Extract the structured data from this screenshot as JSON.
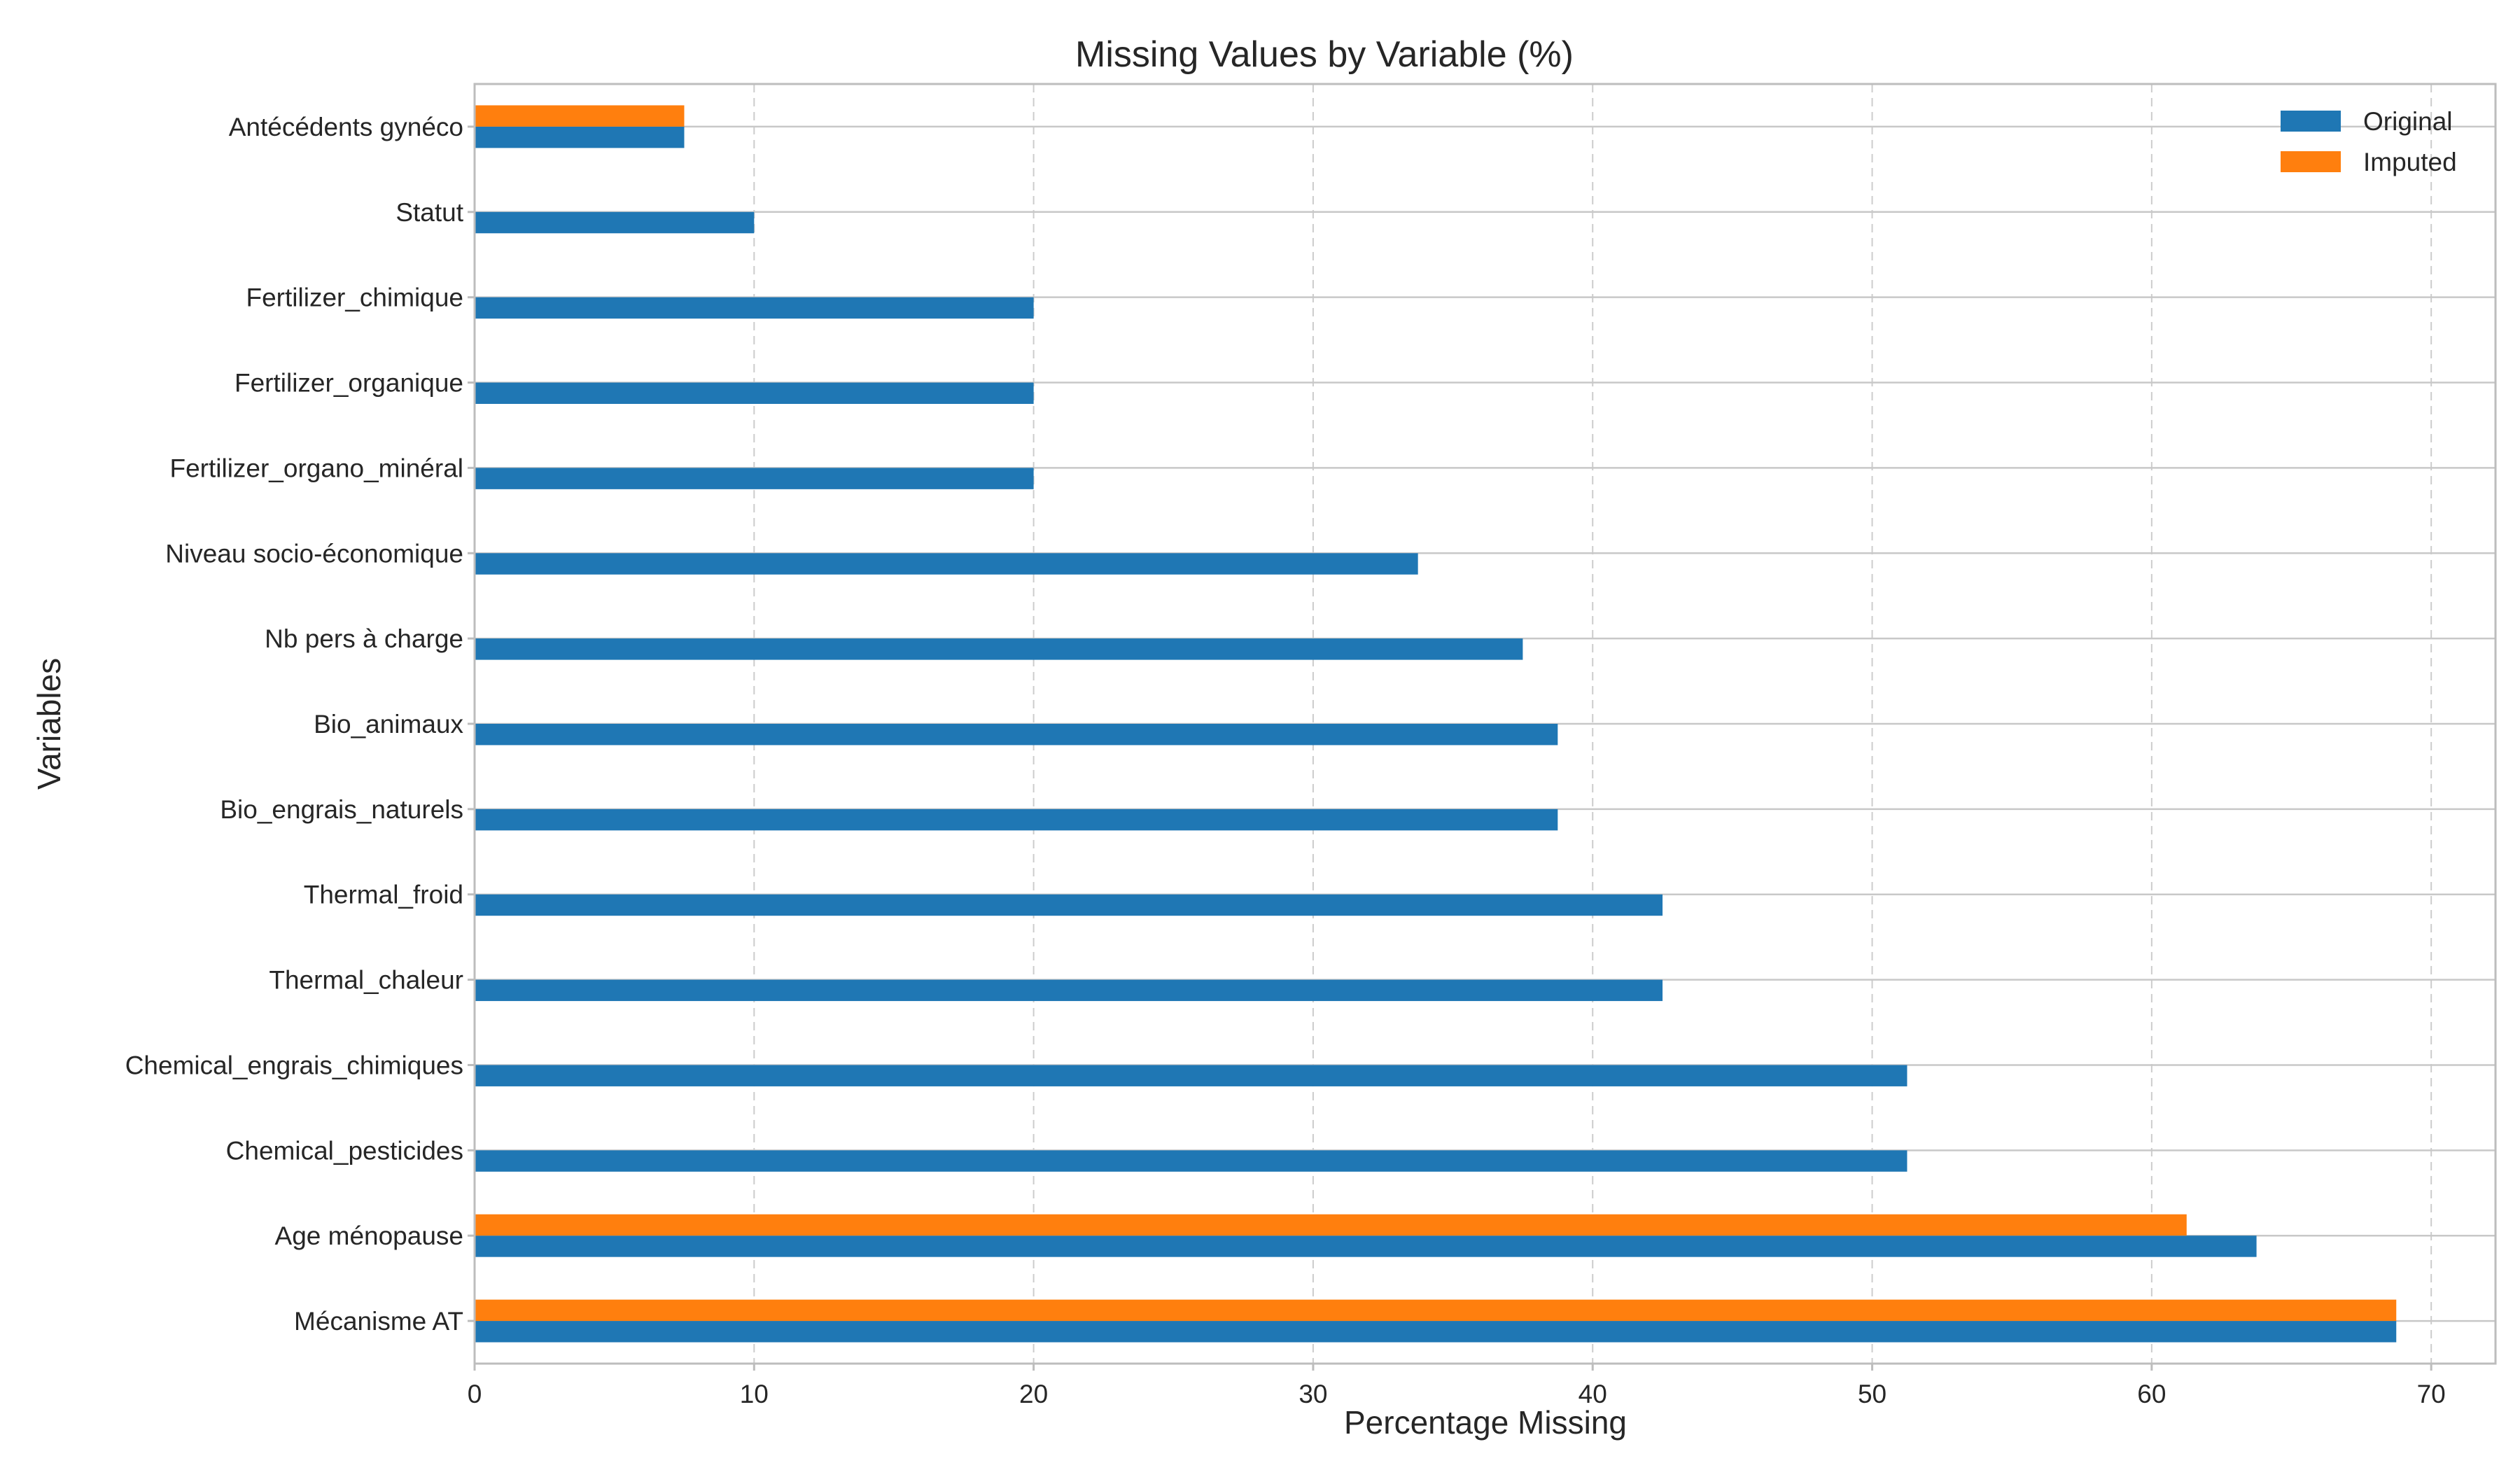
{
  "chart_data": {
    "type": "bar",
    "orientation": "horizontal",
    "title": "Missing Values by Variable (%)",
    "xlabel": "Percentage Missing",
    "ylabel": "Variables",
    "xlim": [
      0,
      72.3
    ],
    "xticks": [
      0,
      10,
      20,
      30,
      40,
      50,
      60,
      70
    ],
    "grid": true,
    "legend_position": "top-right",
    "categories": [
      "Mécanisme AT",
      "Age ménopause",
      "Chemical_pesticides",
      "Chemical_engrais_chimiques",
      "Thermal_chaleur",
      "Thermal_froid",
      "Bio_engrais_naturels",
      "Bio_animaux",
      "Nb pers à charge",
      "Niveau socio-économique",
      "Fertilizer_organo_minéral",
      "Fertilizer_organique",
      "Fertilizer_chimique",
      "Statut",
      "Antécédents gynéco"
    ],
    "series": [
      {
        "name": "Original",
        "color": "#1f77b4",
        "values": [
          68.75,
          63.75,
          51.25,
          51.25,
          42.5,
          42.5,
          38.75,
          38.75,
          37.5,
          33.75,
          20.0,
          20.0,
          20.0,
          10.0,
          7.5
        ]
      },
      {
        "name": "Imputed",
        "color": "#ff7f0e",
        "values": [
          68.75,
          61.25,
          0,
          0,
          0,
          0,
          0,
          0,
          0,
          0,
          0,
          0,
          0,
          0,
          7.5
        ]
      }
    ]
  }
}
